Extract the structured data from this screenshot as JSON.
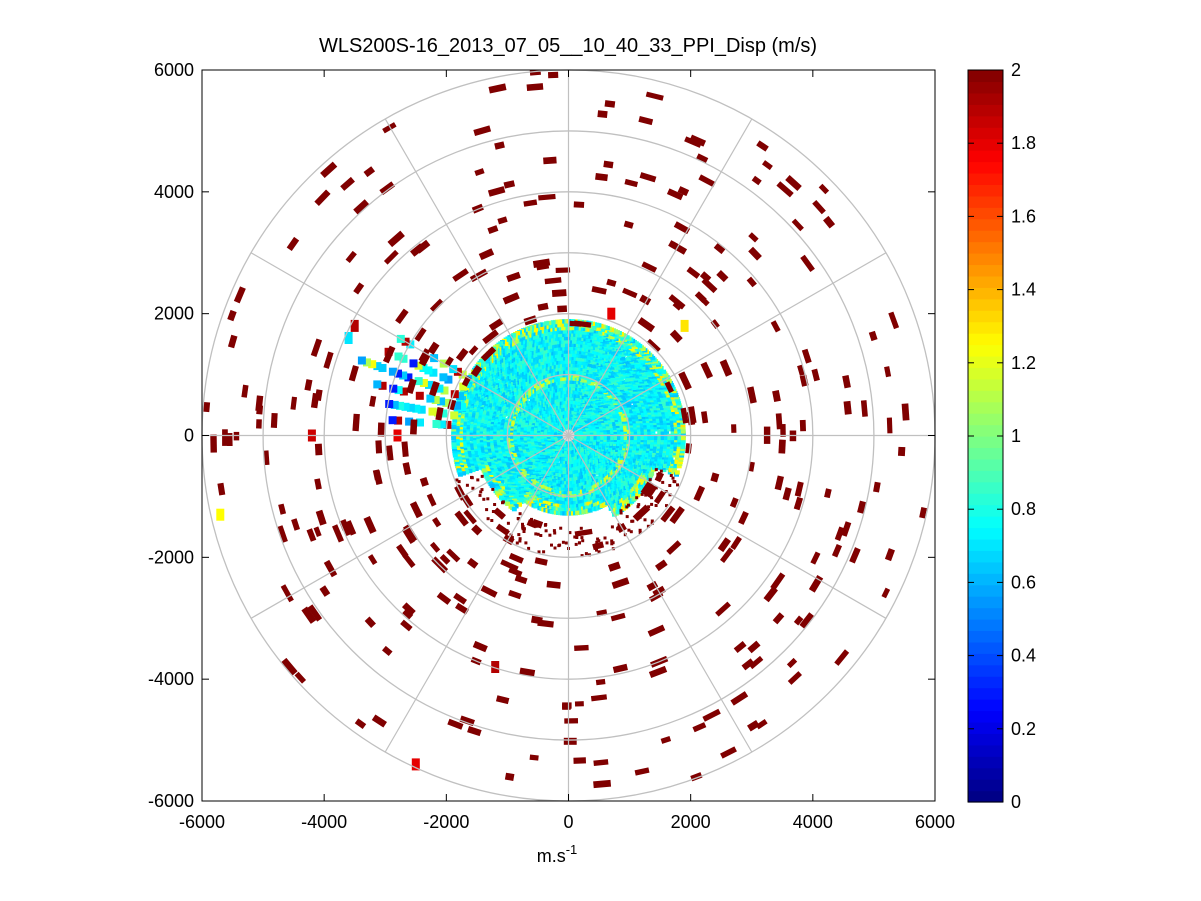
{
  "chart_data": {
    "type": "ppi-polar-scatter",
    "title": "WLS200S-16_2013_07_05__10_40_33_PPI_Disp (m/s)",
    "xlabel": "m.s",
    "xlabel_superscript": "-1",
    "ylabel": "",
    "xlim": [
      -6000,
      6000
    ],
    "ylim": [
      -6000,
      6000
    ],
    "x_ticks": [
      -6000,
      -4000,
      -2000,
      0,
      2000,
      4000,
      6000
    ],
    "y_ticks": [
      6000,
      4000,
      2000,
      0,
      -2000,
      -4000,
      -6000
    ],
    "x_tick_labels": [
      "-6000",
      "-4000",
      "-2000",
      "0",
      "2000",
      "4000",
      "6000"
    ],
    "y_tick_labels": [
      "6000",
      "4000",
      "2000",
      "0",
      "-2000",
      "-4000",
      "-6000"
    ],
    "polar_grid": {
      "ring_radii": [
        1000,
        2000,
        3000,
        4000,
        5000,
        6000
      ],
      "spoke_angles_deg": [
        0,
        30,
        60,
        90,
        120,
        150,
        180,
        210,
        240,
        270,
        300,
        330
      ],
      "color": "#c0c0c0"
    },
    "colorbar": {
      "colormap": "jet",
      "min": 0,
      "max": 2,
      "ticks": [
        0,
        0.2,
        0.4,
        0.6,
        0.8,
        1,
        1.2,
        1.4,
        1.6,
        1.8,
        2
      ],
      "tick_labels": [
        "0",
        "0.2",
        "0.4",
        "0.6",
        "0.8",
        "1",
        "1.2",
        "1.4",
        "1.6",
        "1.8",
        "2"
      ]
    },
    "regions": {
      "core": {
        "description": "dense region mostly cyan",
        "r_max": 1900,
        "dominant_value": 0.75
      },
      "outer_scatter": {
        "description": "sparse isolated cells mostly dark red",
        "r_min": 1800,
        "r_max": 6000,
        "dominant_value": 2.0
      }
    },
    "highlighted_points": [
      {
        "x": -5700,
        "y": -1300,
        "value": 1.25
      },
      {
        "x": -4200,
        "y": 0,
        "value": 1.85
      },
      {
        "x": -2800,
        "y": 0,
        "value": 1.8
      },
      {
        "x": -3600,
        "y": 1600,
        "value": 0.7
      },
      {
        "x": -3500,
        "y": 1800,
        "value": 1.9
      },
      {
        "x": -1200,
        "y": -3800,
        "value": 1.9
      },
      {
        "x": -2500,
        "y": -5400,
        "value": 1.8
      },
      {
        "x": 700,
        "y": 2000,
        "value": 1.8
      },
      {
        "x": 1900,
        "y": 1800,
        "value": 1.3
      }
    ]
  }
}
